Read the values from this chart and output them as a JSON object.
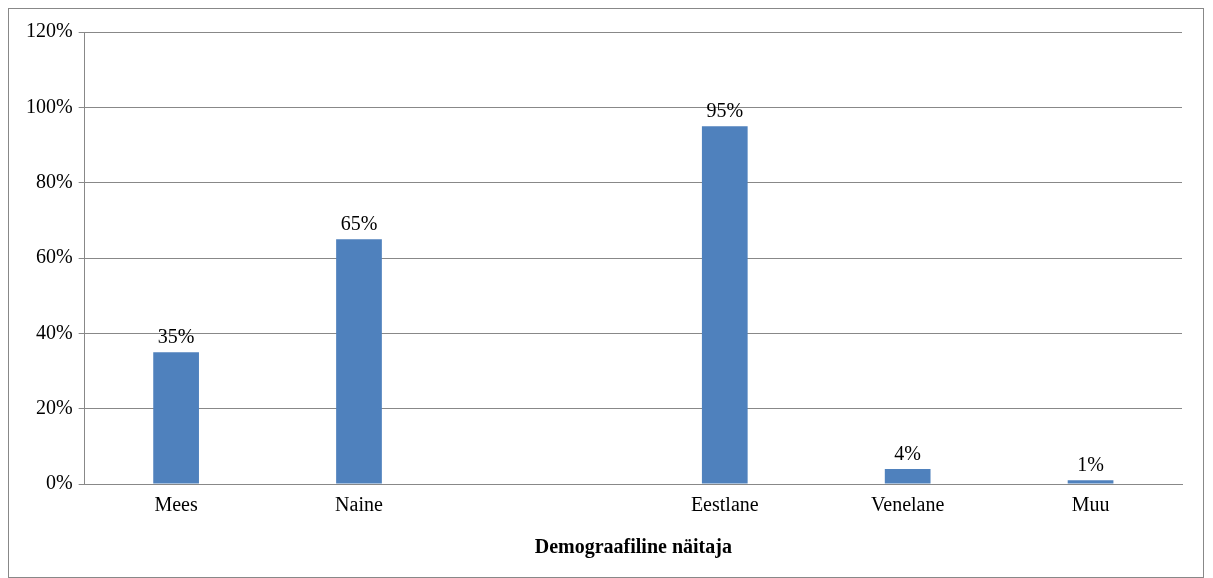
{
  "chart_data": {
    "type": "bar",
    "xlabel": "Demograafiline näitaja",
    "categories": [
      "Mees",
      "Naine",
      null,
      "Eestlane",
      "Venelane",
      "Muu"
    ],
    "values": [
      35,
      65,
      null,
      95,
      4,
      1
    ],
    "value_labels": [
      "35%",
      "65%",
      null,
      "95%",
      "4%",
      "1%"
    ],
    "color": "#4f81bd",
    "ylim": [
      0,
      120
    ],
    "yticks": [
      {
        "value": 0,
        "label": "0%"
      },
      {
        "value": 20,
        "label": "20%"
      },
      {
        "value": 40,
        "label": "40%"
      },
      {
        "value": 60,
        "label": "60%"
      },
      {
        "value": 80,
        "label": "80%"
      },
      {
        "value": 100,
        "label": "100%"
      },
      {
        "value": 120,
        "label": "120%"
      }
    ],
    "grid": "y",
    "legend": false
  }
}
